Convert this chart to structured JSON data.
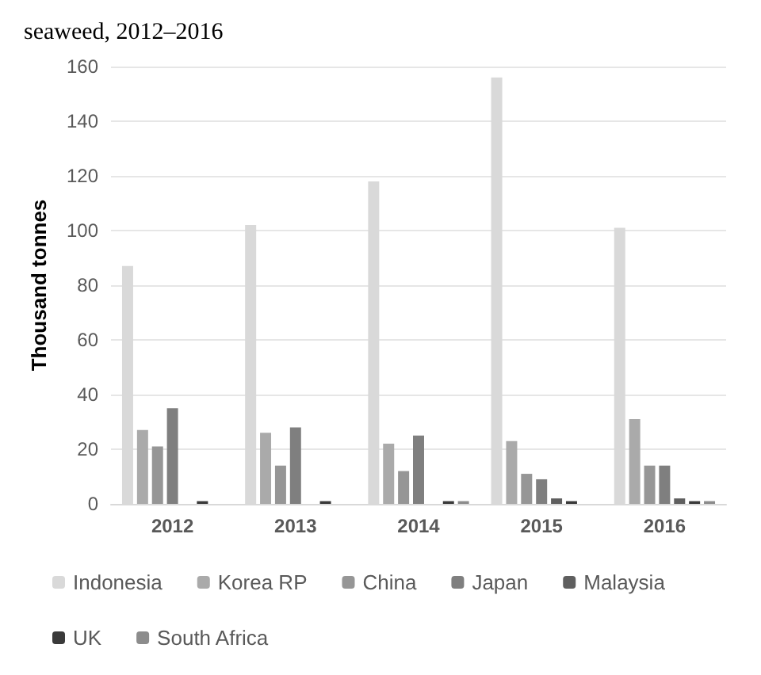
{
  "chart_data": {
    "type": "bar",
    "title": "seaweed, 2012–2016",
    "ylabel": "Thousand tonnes",
    "categories": [
      "2012",
      "2013",
      "2014",
      "2015",
      "2016"
    ],
    "series": [
      {
        "name": "Indonesia",
        "color": "#d9d9d9",
        "values": [
          87,
          102,
          118,
          156,
          101
        ]
      },
      {
        "name": "Korea RP",
        "color": "#aaaaaa",
        "values": [
          27,
          26,
          22,
          23,
          31
        ]
      },
      {
        "name": "China",
        "color": "#969696",
        "values": [
          21,
          14,
          12,
          11,
          14
        ]
      },
      {
        "name": "Japan",
        "color": "#7f7f7f",
        "values": [
          35,
          28,
          25,
          9,
          14
        ]
      },
      {
        "name": "Malaysia",
        "color": "#5f5f5f",
        "values": [
          0,
          0,
          0,
          2,
          2
        ]
      },
      {
        "name": "UK",
        "color": "#3a3a3a",
        "values": [
          1,
          1,
          1,
          1,
          1
        ]
      },
      {
        "name": "South Africa",
        "color": "#8c8c8c",
        "values": [
          0,
          0,
          1,
          0,
          1
        ]
      }
    ],
    "ylim": [
      0,
      160
    ],
    "yticks": [
      0,
      20,
      40,
      60,
      80,
      100,
      120,
      140,
      160
    ],
    "grid": "y",
    "legend": "bottom"
  }
}
